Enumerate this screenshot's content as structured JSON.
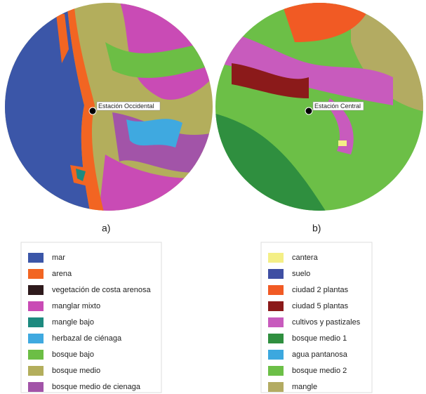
{
  "maps": [
    {
      "panel": "a)",
      "station": "Estación Occidental",
      "legend": [
        {
          "label": "mar",
          "color": "#3b56a8"
        },
        {
          "label": "arena",
          "color": "#f26522"
        },
        {
          "label": "vegetación de costa arenosa",
          "color": "#2e1a1c"
        },
        {
          "label": "manglar mixto",
          "color": "#c94bb5"
        },
        {
          "label": "mangle bajo",
          "color": "#1d8a7f"
        },
        {
          "label": "herbazal de ciénaga",
          "color": "#3fa9e0"
        },
        {
          "label": "bosque bajo",
          "color": "#6cbe45"
        },
        {
          "label": "bosque medio",
          "color": "#b3ae5c"
        },
        {
          "label": "bosque medio de cienaga",
          "color": "#a254a8"
        }
      ]
    },
    {
      "panel": "b)",
      "station": "Estación Central",
      "legend": [
        {
          "label": "cantera",
          "color": "#f4ef86"
        },
        {
          "label": "suelo",
          "color": "#3f4fa3"
        },
        {
          "label": "ciudad 2 plantas",
          "color": "#f15a24"
        },
        {
          "label": "ciudad 5 plantas",
          "color": "#8b1a1a"
        },
        {
          "label": "cultivos y pastizales",
          "color": "#c85bbd"
        },
        {
          "label": "bosque medio 1",
          "color": "#2f8f3f"
        },
        {
          "label": "agua pantanosa",
          "color": "#3ca8df"
        },
        {
          "label": "bosque medio 2",
          "color": "#6cbf47"
        },
        {
          "label": "mangle",
          "color": "#b3ab62"
        }
      ]
    }
  ]
}
